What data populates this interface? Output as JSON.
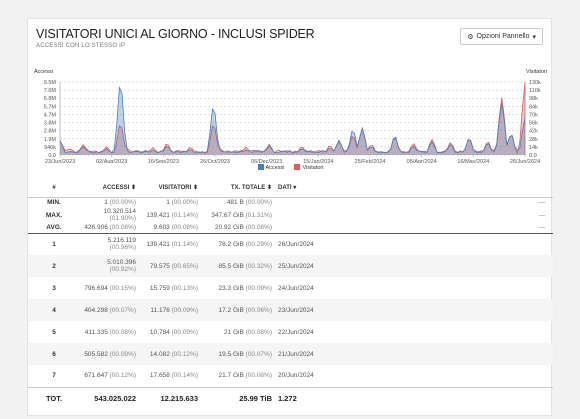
{
  "panel": {
    "title": "VISITATORI UNICI AL GIORNO - INCLUSI SPIDER",
    "subtitle": "ACCESSI CON LO STESSO IP",
    "options_label": "Opzioni Pannello"
  },
  "chart_data": {
    "type": "area",
    "left_axis_label": "Accessi",
    "right_axis_label": "Visitatori",
    "left_ticks": [
      "9.5M",
      "7.6M",
      "6.8M",
      "5.7M",
      "4.7M",
      "3.8M",
      "2.8M",
      "1.9M",
      "940k",
      "0.0"
    ],
    "right_ticks": [
      "130k",
      "110k",
      "98k",
      "84k",
      "70k",
      "56k",
      "42k",
      "28k",
      "14k",
      "0.0"
    ],
    "x_ticks": [
      "23/Jun/2023",
      "02/Aug/2023",
      "16/Sep/2023",
      "26/Oct/2023",
      "06/Dec/2023",
      "15/Jan/2024",
      "25/Feb/2024",
      "05/Apr/2024",
      "16/May/2024",
      "26/Jun/2024"
    ],
    "legend": [
      {
        "name": "Accessi",
        "color": "#4a7fb5"
      },
      {
        "name": "Visitatori",
        "color": "#e05c5c"
      }
    ],
    "grid": true,
    "left_range": [
      0,
      10400000
    ],
    "right_range": [
      0,
      140000
    ],
    "series": [
      {
        "name": "Accessi",
        "color": "#4a7fb5",
        "peaks": [
          [
            0.0,
            2000000
          ],
          [
            0.02,
            500000
          ],
          [
            0.05,
            1200000
          ],
          [
            0.1,
            900000
          ],
          [
            0.13,
            10300000
          ],
          [
            0.14,
            900000
          ],
          [
            0.2,
            700000
          ],
          [
            0.23,
            1300000
          ],
          [
            0.28,
            800000
          ],
          [
            0.33,
            7000000
          ],
          [
            0.34,
            800000
          ],
          [
            0.4,
            700000
          ],
          [
            0.45,
            1300000
          ],
          [
            0.52,
            900000
          ],
          [
            0.58,
            1000000
          ],
          [
            0.6,
            2100000
          ],
          [
            0.63,
            3600000
          ],
          [
            0.65,
            3800000
          ],
          [
            0.67,
            1200000
          ],
          [
            0.72,
            2700000
          ],
          [
            0.76,
            1300000
          ],
          [
            0.8,
            1900000
          ],
          [
            0.84,
            1500000
          ],
          [
            0.88,
            2300000
          ],
          [
            0.92,
            1700000
          ],
          [
            0.95,
            7400000
          ],
          [
            0.97,
            3000000
          ],
          [
            1.0,
            5300000
          ]
        ]
      },
      {
        "name": "Visitatori",
        "color": "#e05c5c",
        "peaks": [
          [
            0.0,
            28000
          ],
          [
            0.02,
            12000
          ],
          [
            0.05,
            20000
          ],
          [
            0.1,
            16000
          ],
          [
            0.13,
            60000
          ],
          [
            0.14,
            18000
          ],
          [
            0.2,
            14000
          ],
          [
            0.23,
            22000
          ],
          [
            0.28,
            15000
          ],
          [
            0.33,
            60000
          ],
          [
            0.34,
            16000
          ],
          [
            0.4,
            15000
          ],
          [
            0.45,
            20000
          ],
          [
            0.52,
            16000
          ],
          [
            0.58,
            18000
          ],
          [
            0.6,
            26000
          ],
          [
            0.63,
            38000
          ],
          [
            0.65,
            52000
          ],
          [
            0.67,
            20000
          ],
          [
            0.72,
            34000
          ],
          [
            0.76,
            22000
          ],
          [
            0.8,
            30000
          ],
          [
            0.84,
            24000
          ],
          [
            0.88,
            32000
          ],
          [
            0.92,
            26000
          ],
          [
            0.95,
            110000
          ],
          [
            0.97,
            40000
          ],
          [
            1.0,
            139000
          ]
        ]
      }
    ]
  },
  "table": {
    "headers": [
      "#",
      "ACCESSI",
      "VISITATORI",
      "TX. TOTALE",
      "DATI"
    ],
    "sort_icons": [
      "",
      "⬍",
      "⬍",
      "⬍",
      "▾"
    ],
    "stats": [
      {
        "label": "MIN.",
        "accessi": "1",
        "accessi_pct": "(00.00%)",
        "visitatori": "1",
        "visitatori_pct": "(00.00%)",
        "tx": "481 B",
        "tx_pct": "(00.00%)",
        "end": "—"
      },
      {
        "label": "MAX.",
        "accessi": "10.320.514",
        "accessi_pct": "(01.90%)",
        "visitatori": "139.421",
        "visitatori_pct": "(01.14%)",
        "tx": "347.67 GiB",
        "tx_pct": "(01.31%)",
        "end": "—"
      },
      {
        "label": "AVG.",
        "accessi": "426.906",
        "accessi_pct": "(00.08%)",
        "visitatori": "9.603",
        "visitatori_pct": "(00.08%)",
        "tx": "20.92 GiB",
        "tx_pct": "(00.08%)",
        "end": "—"
      }
    ],
    "rows": [
      {
        "n": "1",
        "accessi": "5.216.119",
        "accessi_pct": "(00.96%)",
        "visitatori": "139.421",
        "visitatori_pct": "(01.14%)",
        "tx": "78.2 GiB",
        "tx_pct": "(00.29%)",
        "date": "26/Jun/2024"
      },
      {
        "n": "2",
        "accessi": "5.010.396",
        "accessi_pct": "(00.92%)",
        "visitatori": "79.575",
        "visitatori_pct": "(00.65%)",
        "tx": "85.5 GiB",
        "tx_pct": "(00.32%)",
        "date": "25/Jun/2024"
      },
      {
        "n": "3",
        "accessi": "796.694",
        "accessi_pct": "(00.15%)",
        "visitatori": "15.759",
        "visitatori_pct": "(00.13%)",
        "tx": "23.3 GiB",
        "tx_pct": "(00.09%)",
        "date": "24/Jun/2024"
      },
      {
        "n": "4",
        "accessi": "404.298",
        "accessi_pct": "(00.07%)",
        "visitatori": "11.176",
        "visitatori_pct": "(00.09%)",
        "tx": "17.2 GiB",
        "tx_pct": "(00.06%)",
        "date": "23/Jun/2024"
      },
      {
        "n": "5",
        "accessi": "411.335",
        "accessi_pct": "(00.08%)",
        "visitatori": "10.784",
        "visitatori_pct": "(00.09%)",
        "tx": "21 GiB",
        "tx_pct": "(00.08%)",
        "date": "22/Jun/2024"
      },
      {
        "n": "6",
        "accessi": "505.582",
        "accessi_pct": "(00.09%)",
        "visitatori": "14.082",
        "visitatori_pct": "(00.12%)",
        "tx": "19.5 GiB",
        "tx_pct": "(00.07%)",
        "date": "21/Jun/2024"
      },
      {
        "n": "7",
        "accessi": "671.647",
        "accessi_pct": "(00.12%)",
        "visitatori": "17.658",
        "visitatori_pct": "(00.14%)",
        "tx": "21.7 GiB",
        "tx_pct": "(00.08%)",
        "date": "20/Jun/2024"
      }
    ],
    "total": {
      "label": "TOT.",
      "accessi": "543.025.022",
      "visitatori": "12.215.633",
      "tx": "25.99 TiB",
      "dati": "1.272"
    }
  }
}
